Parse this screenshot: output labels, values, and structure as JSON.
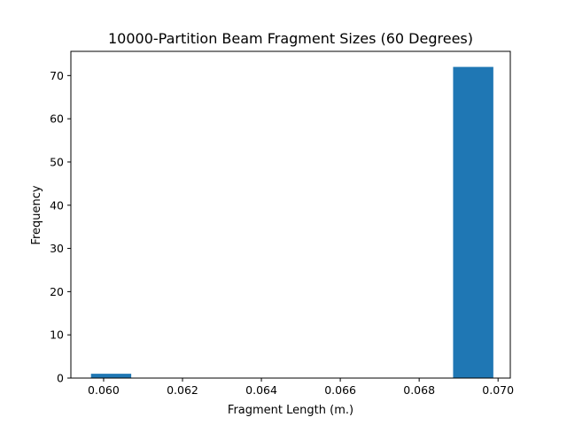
{
  "chart_data": {
    "type": "bar",
    "title": "10000-Partition Beam Fragment Sizes (60 Degrees)",
    "xlabel": "Fragment Length (m.)",
    "ylabel": "Frequency",
    "xlim": [
      0.05917,
      0.07031
    ],
    "ylim": [
      0,
      75.6
    ],
    "grid": false,
    "bar_color": "#1f77b4",
    "x_ticks": [
      {
        "value": 0.06,
        "label": "0.060"
      },
      {
        "value": 0.062,
        "label": "0.062"
      },
      {
        "value": 0.064,
        "label": "0.064"
      },
      {
        "value": 0.066,
        "label": "0.066"
      },
      {
        "value": 0.068,
        "label": "0.068"
      },
      {
        "value": 0.07,
        "label": "0.070"
      }
    ],
    "y_ticks": [
      {
        "value": 0,
        "label": "0"
      },
      {
        "value": 10,
        "label": "10"
      },
      {
        "value": 20,
        "label": "20"
      },
      {
        "value": 30,
        "label": "30"
      },
      {
        "value": 40,
        "label": "40"
      },
      {
        "value": 50,
        "label": "50"
      },
      {
        "value": 60,
        "label": "60"
      },
      {
        "value": 70,
        "label": "70"
      }
    ],
    "bins": [
      {
        "x0": 0.05968,
        "x1": 0.0607,
        "count": 1
      },
      {
        "x0": 0.0607,
        "x1": 0.06172,
        "count": 0
      },
      {
        "x0": 0.06172,
        "x1": 0.06274,
        "count": 0
      },
      {
        "x0": 0.06274,
        "x1": 0.06376,
        "count": 0
      },
      {
        "x0": 0.06376,
        "x1": 0.06478,
        "count": 0
      },
      {
        "x0": 0.06478,
        "x1": 0.0658,
        "count": 0
      },
      {
        "x0": 0.0658,
        "x1": 0.06682,
        "count": 0
      },
      {
        "x0": 0.06682,
        "x1": 0.06784,
        "count": 0
      },
      {
        "x0": 0.06784,
        "x1": 0.06886,
        "count": 0
      },
      {
        "x0": 0.06886,
        "x1": 0.06988,
        "count": 72
      }
    ]
  }
}
